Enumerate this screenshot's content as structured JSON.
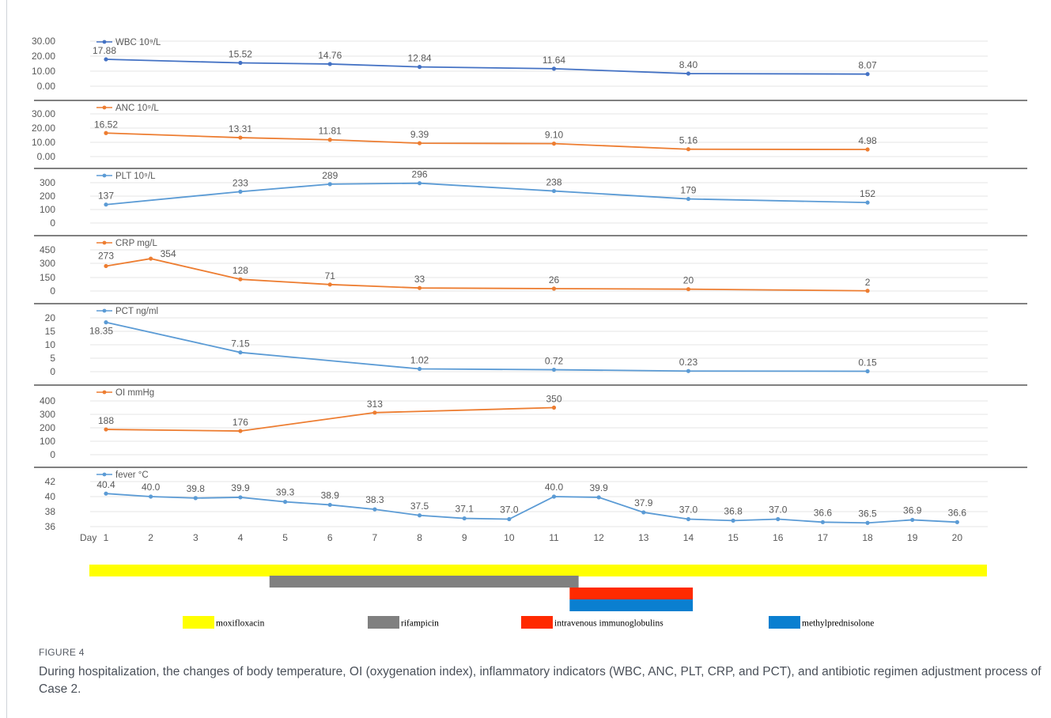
{
  "figure": {
    "label": "FIGURE 4",
    "caption": "During hospitalization, the changes of body temperature, OI (oxygenation index), inflammatory indicators (WBC, ANC, PLT, CRP, and PCT), and antibiotic regimen adjustment process of Case 2."
  },
  "chart_data": [
    {
      "type": "line",
      "series": [
        {
          "name": "WBC 10⁹/L",
          "x": [
            1,
            4,
            6,
            8,
            11,
            14,
            18
          ],
          "values": [
            17.88,
            15.52,
            14.76,
            12.84,
            11.64,
            8.4,
            8.07
          ],
          "labels": [
            "17.88",
            "15.52",
            "14.76",
            "12.84",
            "11.64",
            "8.40",
            "8.07"
          ]
        }
      ],
      "yticks": [
        "30.00",
        "20.00",
        "10.00",
        "0.00"
      ],
      "ylim": [
        0,
        30
      ],
      "color": "#4472c4"
    },
    {
      "type": "line",
      "series": [
        {
          "name": "ANC 10⁹/L",
          "x": [
            1,
            4,
            6,
            8,
            11,
            14,
            18
          ],
          "values": [
            16.52,
            13.31,
            11.81,
            9.39,
            9.1,
            5.16,
            4.98
          ],
          "labels": [
            "16.52",
            "13.31",
            "11.81",
            "9.39",
            "9.10",
            "5.16",
            "4.98"
          ]
        }
      ],
      "yticks": [
        "30.00",
        "20.00",
        "10.00",
        "0.00"
      ],
      "ylim": [
        0,
        30
      ],
      "color": "#ed7d31"
    },
    {
      "type": "line",
      "series": [
        {
          "name": "PLT 10⁹/L",
          "x": [
            1,
            4,
            6,
            8,
            11,
            14,
            18
          ],
          "values": [
            137,
            233,
            289,
            296,
            238,
            179,
            152
          ],
          "labels": [
            "137",
            "233",
            "289",
            "296",
            "238",
            "179",
            "152"
          ]
        }
      ],
      "yticks": [
        "300",
        "200",
        "100",
        "0"
      ],
      "ylim": [
        0,
        300
      ],
      "color": "#5b9bd5"
    },
    {
      "type": "line",
      "series": [
        {
          "name": "CRP mg/L",
          "x": [
            1,
            2,
            4,
            6,
            8,
            11,
            14,
            18
          ],
          "values": [
            273,
            354,
            128,
            71,
            33,
            26,
            20,
            2
          ],
          "labels": [
            "273",
            "354",
            "128",
            "71",
            "33",
            "26",
            "20",
            "2"
          ]
        }
      ],
      "yticks": [
        "450",
        "300",
        "150",
        "0"
      ],
      "ylim": [
        0,
        450
      ],
      "color": "#ed7d31"
    },
    {
      "type": "line",
      "series": [
        {
          "name": "PCT ng/ml",
          "x": [
            1,
            4,
            8,
            11,
            14,
            18
          ],
          "values": [
            18.35,
            7.15,
            1.02,
            0.72,
            0.23,
            0.15
          ],
          "labels": [
            "18.35",
            "7.15",
            "1.02",
            "0.72",
            "0.23",
            "0.15"
          ]
        }
      ],
      "yticks": [
        "20",
        "15",
        "10",
        "5",
        "0"
      ],
      "ylim": [
        0,
        20
      ],
      "color": "#5b9bd5"
    },
    {
      "type": "line",
      "series": [
        {
          "name": "OI mmHg",
          "x": [
            1,
            4,
            7,
            11
          ],
          "values": [
            188,
            176,
            313,
            350
          ],
          "labels": [
            "188",
            "176",
            "313",
            "350"
          ]
        }
      ],
      "yticks": [
        "400",
        "300",
        "200",
        "100",
        "0"
      ],
      "ylim": [
        0,
        400
      ],
      "color": "#ed7d31"
    },
    {
      "type": "line",
      "series": [
        {
          "name": "fever °C",
          "x": [
            1,
            2,
            3,
            4,
            5,
            6,
            7,
            8,
            9,
            10,
            11,
            12,
            13,
            14,
            15,
            16,
            17,
            18,
            19,
            20
          ],
          "values": [
            40.4,
            40.0,
            39.8,
            39.9,
            39.3,
            38.9,
            38.3,
            37.5,
            37.1,
            37.0,
            40.0,
            39.9,
            37.9,
            37.0,
            36.8,
            37.0,
            36.6,
            36.5,
            36.9,
            36.6
          ],
          "labels": [
            "40.4",
            "40.0",
            "39.8",
            "39.9",
            "39.3",
            "38.9",
            "38.3",
            "37.5",
            "37.1",
            "37.0",
            "40.0",
            "39.9",
            "37.9",
            "37.0",
            "36.8",
            "37.0",
            "36.6",
            "36.5",
            "36.9",
            "36.6"
          ]
        }
      ],
      "yticks": [
        "42",
        "40",
        "38",
        "36"
      ],
      "ylim": [
        36,
        42
      ],
      "color": "#5b9bd5",
      "xlabel": "Day",
      "xticks": [
        "1",
        "2",
        "3",
        "4",
        "5",
        "6",
        "7",
        "8",
        "9",
        "10",
        "11",
        "12",
        "13",
        "14",
        "15",
        "16",
        "17",
        "18",
        "19",
        "20"
      ]
    },
    {
      "type": "gantt",
      "bars": [
        {
          "name": "moxifloxacin",
          "start_day": 0.5,
          "end_day": 20.5,
          "color": "#ffff00"
        },
        {
          "name": "rifampicin",
          "start_day": 4.65,
          "end_day": 11.55,
          "color": "#808080"
        },
        {
          "name": "intravenous immunoglobulins",
          "start_day": 11.35,
          "end_day": 14.1,
          "color": "#ff2a00"
        },
        {
          "name": "methylprednisolone",
          "start_day": 11.35,
          "end_day": 14.1,
          "color": "#0a7fd0"
        }
      ]
    }
  ]
}
